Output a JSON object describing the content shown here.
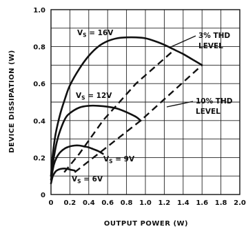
{
  "chart_data": {
    "type": "line",
    "xlabel": "OUTPUT POWER (W)",
    "ylabel": "DEVICE DISSIPATION (W)",
    "xlim": [
      0,
      2.0
    ],
    "ylim": [
      0,
      1.0
    ],
    "x_ticks": [
      "0",
      "0.2",
      "0.4",
      "0.6",
      "0.8",
      "1.0",
      "1.2",
      "1.4",
      "1.6",
      "1.8",
      "2.0"
    ],
    "y_ticks": [
      "0",
      "0.2",
      "0.4",
      "0.6",
      "0.8",
      "1.0"
    ],
    "grid": true,
    "series": [
      {
        "name": "V_S = 16V",
        "label_main": "V",
        "label_sub": "S",
        "label_rest": " = 16V",
        "style": "solid",
        "x": [
          0.0,
          0.02,
          0.05,
          0.1,
          0.15,
          0.2,
          0.3,
          0.4,
          0.5,
          0.6,
          0.7,
          0.8,
          0.9,
          1.0,
          1.1,
          1.2,
          1.3,
          1.4,
          1.5,
          1.6
        ],
        "y": [
          0.1,
          0.22,
          0.33,
          0.44,
          0.52,
          0.59,
          0.68,
          0.75,
          0.8,
          0.83,
          0.845,
          0.85,
          0.85,
          0.845,
          0.83,
          0.81,
          0.785,
          0.76,
          0.73,
          0.7
        ]
      },
      {
        "name": "V_S = 12V",
        "label_main": "V",
        "label_sub": "S",
        "label_rest": " = 12V",
        "style": "solid",
        "x": [
          0.0,
          0.03,
          0.06,
          0.1,
          0.15,
          0.2,
          0.3,
          0.4,
          0.5,
          0.6,
          0.7,
          0.8,
          0.9,
          0.95
        ],
        "y": [
          0.1,
          0.2,
          0.28,
          0.35,
          0.41,
          0.44,
          0.47,
          0.48,
          0.48,
          0.475,
          0.465,
          0.445,
          0.42,
          0.4
        ]
      },
      {
        "name": "V_S = 9V",
        "label_main": "V",
        "label_sub": "S",
        "label_rest": " = 9V",
        "style": "solid",
        "x": [
          0.0,
          0.03,
          0.06,
          0.1,
          0.15,
          0.2,
          0.25,
          0.3,
          0.35,
          0.4,
          0.45,
          0.5,
          0.55
        ],
        "y": [
          0.08,
          0.16,
          0.2,
          0.23,
          0.25,
          0.26,
          0.265,
          0.265,
          0.26,
          0.255,
          0.245,
          0.235,
          0.22
        ]
      },
      {
        "name": "V_S = 6V",
        "label_main": "V",
        "label_sub": "S",
        "label_rest": " = 6V",
        "style": "solid",
        "x": [
          0.0,
          0.02,
          0.05,
          0.08,
          0.12,
          0.16,
          0.2,
          0.25
        ],
        "y": [
          0.06,
          0.1,
          0.125,
          0.135,
          0.14,
          0.14,
          0.135,
          0.13
        ]
      },
      {
        "name": "3% THD LEVEL",
        "style": "dashed",
        "x": [
          0.14,
          0.3,
          0.55,
          0.9,
          1.3
        ],
        "y": [
          0.12,
          0.22,
          0.4,
          0.6,
          0.78
        ]
      },
      {
        "name": "10% THD LEVEL",
        "style": "dashed",
        "x": [
          0.25,
          0.55,
          0.95,
          1.6
        ],
        "y": [
          0.12,
          0.24,
          0.4,
          0.7
        ]
      }
    ],
    "annotations": [
      {
        "line1": "3% THD",
        "line2": "LEVEL"
      },
      {
        "line1": "10% THD",
        "line2": "LEVEL"
      }
    ]
  }
}
